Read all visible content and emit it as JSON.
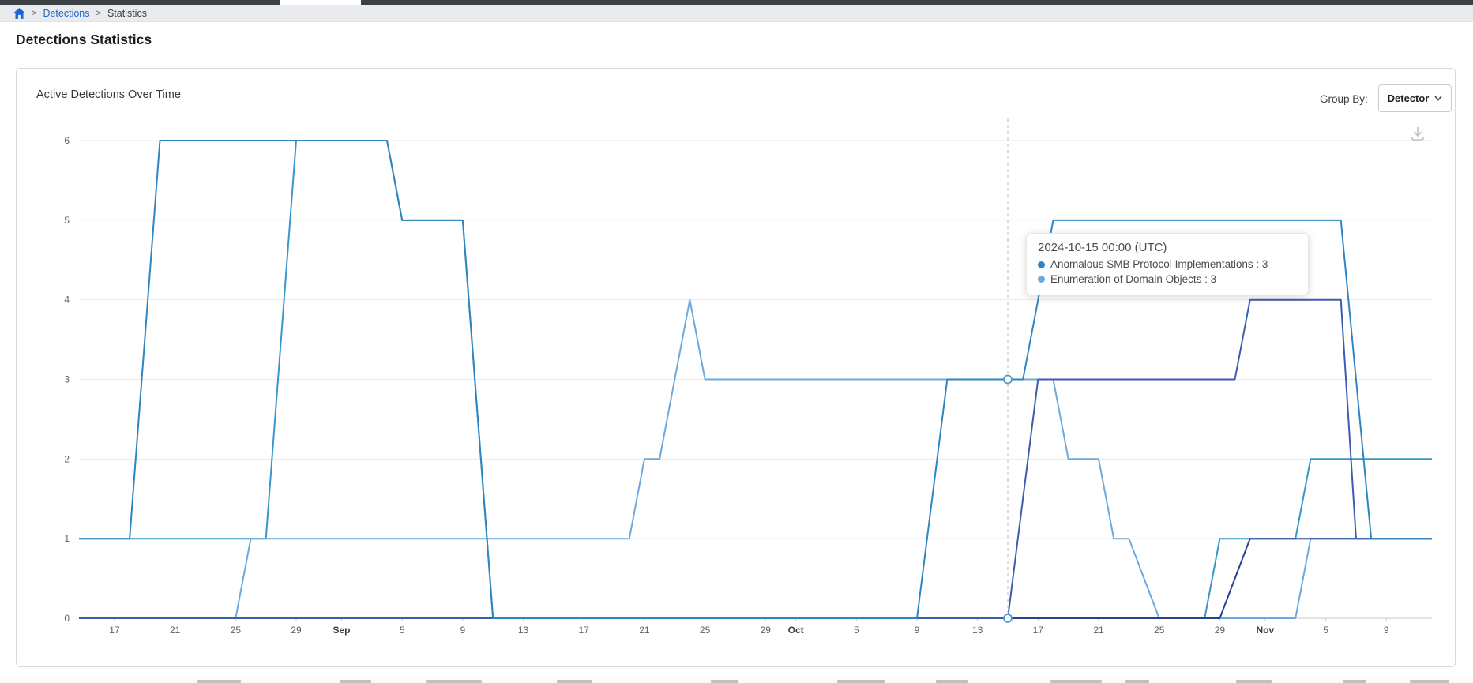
{
  "breadcrumb": {
    "separator": ">",
    "items": [
      {
        "label": "Detections"
      },
      {
        "label": "Statistics"
      }
    ]
  },
  "page": {
    "title": "Detections Statistics"
  },
  "panel": {
    "title": "Active Detections Over Time",
    "group_by_label": "Group By:",
    "group_by_value": "Detector",
    "icons": {
      "download": "download-icon",
      "chevron": "chevron-down-icon"
    }
  },
  "tooltip": {
    "title": "2024-10-15 00:00 (UTC)",
    "separator": " : ",
    "rows": [
      {
        "label": "Anomalous SMB Protocol Implementations",
        "value": "3",
        "color": "#2E86C1"
      },
      {
        "label": "Enumeration of Domain Objects",
        "value": "3",
        "color": "#6FA8DC"
      }
    ]
  },
  "colors": {
    "gridline": "#EBEBEB",
    "axis_line": "#C9C9C9",
    "axis_text": "#616161",
    "month_text": "#3C3C3C",
    "dashed_pointer": "#B8B8B8",
    "marker_stroke": "#4F97CC",
    "link_blue": "#1A66D2"
  },
  "chart_data": {
    "type": "line",
    "title": "Active Detections Over Time",
    "ylim": [
      0,
      6
    ],
    "y_ticks": [
      0,
      1,
      2,
      3,
      4,
      5,
      6
    ],
    "x_range": [
      "2024-08-14",
      "2024-11-12"
    ],
    "grid": true,
    "legend_position": "none",
    "hover": {
      "date": "10-15",
      "marker_values": [
        3,
        0
      ]
    },
    "x_ticks": [
      {
        "date": "08-17",
        "label": "17"
      },
      {
        "date": "08-21",
        "label": "21"
      },
      {
        "date": "08-25",
        "label": "25"
      },
      {
        "date": "08-29",
        "label": "29"
      },
      {
        "date": "09-01",
        "label": "Sep",
        "bold": true
      },
      {
        "date": "09-05",
        "label": "5"
      },
      {
        "date": "09-09",
        "label": "9"
      },
      {
        "date": "09-13",
        "label": "13"
      },
      {
        "date": "09-17",
        "label": "17"
      },
      {
        "date": "09-21",
        "label": "21"
      },
      {
        "date": "09-25",
        "label": "25"
      },
      {
        "date": "09-29",
        "label": "29"
      },
      {
        "date": "10-01",
        "label": "Oct",
        "bold": true
      },
      {
        "date": "10-05",
        "label": "5"
      },
      {
        "date": "10-09",
        "label": "9"
      },
      {
        "date": "10-13",
        "label": "13"
      },
      {
        "date": "10-17",
        "label": "17"
      },
      {
        "date": "10-21",
        "label": "21"
      },
      {
        "date": "10-25",
        "label": "25"
      },
      {
        "date": "10-29",
        "label": "29"
      },
      {
        "date": "11-01",
        "label": "Nov",
        "bold": true
      },
      {
        "date": "11-05",
        "label": "5"
      },
      {
        "date": "11-09",
        "label": "9"
      }
    ],
    "series": [
      {
        "name": "",
        "color": "#3697C8",
        "points": [
          [
            "08-14",
            1
          ],
          [
            "08-27",
            1
          ],
          [
            "08-29",
            6
          ],
          [
            "09-04",
            6
          ],
          [
            "09-05",
            5
          ],
          [
            "09-09",
            5
          ],
          [
            "09-11",
            0
          ],
          [
            "10-28",
            0
          ],
          [
            "10-29",
            1
          ],
          [
            "11-03",
            1
          ],
          [
            "11-04",
            2
          ],
          [
            "11-12",
            2
          ]
        ]
      },
      {
        "name": "Enumeration of Domain Objects",
        "color": "#6FA8DC",
        "points": [
          [
            "08-14",
            0
          ],
          [
            "08-25",
            0
          ],
          [
            "08-26",
            1
          ],
          [
            "09-20",
            1
          ],
          [
            "09-21",
            2
          ],
          [
            "09-22",
            2
          ],
          [
            "09-24",
            4
          ],
          [
            "09-25",
            3
          ],
          [
            "10-18",
            3
          ],
          [
            "10-19",
            2
          ],
          [
            "10-21",
            2
          ],
          [
            "10-22",
            1
          ],
          [
            "10-23",
            1
          ],
          [
            "10-25",
            0
          ],
          [
            "11-03",
            0
          ],
          [
            "11-04",
            1
          ],
          [
            "11-12",
            1
          ]
        ]
      },
      {
        "name": "",
        "color": "#26418F",
        "points": [
          [
            "08-14",
            0
          ],
          [
            "10-29",
            0
          ],
          [
            "10-31",
            1
          ],
          [
            "11-12",
            1
          ]
        ]
      },
      {
        "name": "",
        "color": "#3D5CB0",
        "points": [
          [
            "08-14",
            0
          ],
          [
            "10-15",
            0
          ],
          [
            "10-17",
            3
          ],
          [
            "10-30",
            3
          ],
          [
            "10-31",
            4
          ],
          [
            "11-06",
            4
          ],
          [
            "11-07",
            1
          ],
          [
            "11-12",
            1
          ]
        ]
      },
      {
        "name": "Anomalous SMB Protocol Implementations",
        "color": "#2E86C1",
        "points": [
          [
            "08-14",
            1
          ],
          [
            "08-18",
            1
          ],
          [
            "08-20",
            6
          ],
          [
            "09-04",
            6
          ],
          [
            "09-05",
            5
          ],
          [
            "09-09",
            5
          ],
          [
            "09-11",
            0
          ],
          [
            "10-09",
            0
          ],
          [
            "10-11",
            3
          ],
          [
            "10-16",
            3
          ],
          [
            "10-18",
            5
          ],
          [
            "11-06",
            5
          ],
          [
            "11-08",
            1
          ],
          [
            "11-12",
            1
          ]
        ]
      }
    ]
  }
}
